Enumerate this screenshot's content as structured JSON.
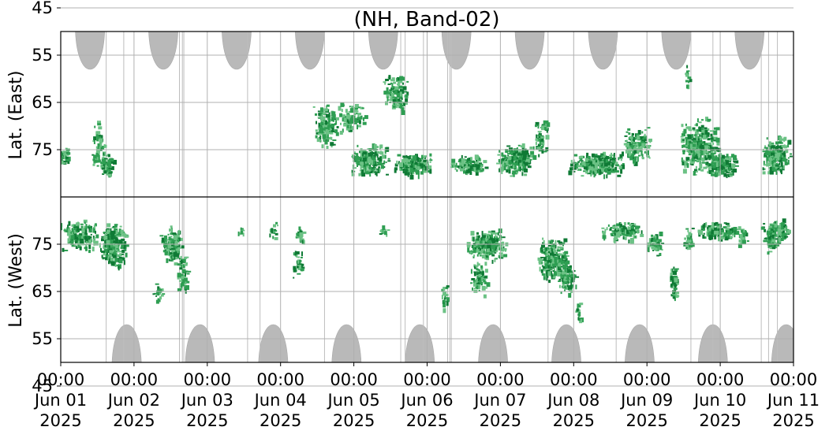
{
  "chart_data": {
    "type": "heatmap",
    "title": "(NH, Band-02)",
    "ylabel_top": "Lat. (East)",
    "ylabel_bottom": "Lat. (West)",
    "x_range": [
      "2025-06-01T00:00",
      "2025-06-11T00:00"
    ],
    "x_ticks": [
      {
        "time": "00:00",
        "date": "Jun 01",
        "year": "2025",
        "day": 0
      },
      {
        "time": "00:00",
        "date": "Jun 02",
        "year": "2025",
        "day": 1
      },
      {
        "time": "00:00",
        "date": "Jun 03",
        "year": "2025",
        "day": 2
      },
      {
        "time": "00:00",
        "date": "Jun 04",
        "year": "2025",
        "day": 3
      },
      {
        "time": "00:00",
        "date": "Jun 05",
        "year": "2025",
        "day": 4
      },
      {
        "time": "00:00",
        "date": "Jun 06",
        "year": "2025",
        "day": 5
      },
      {
        "time": "00:00",
        "date": "Jun 07",
        "year": "2025",
        "day": 6
      },
      {
        "time": "00:00",
        "date": "Jun 08",
        "year": "2025",
        "day": 7
      },
      {
        "time": "00:00",
        "date": "Jun 09",
        "year": "2025",
        "day": 8
      },
      {
        "time": "00:00",
        "date": "Jun 10",
        "year": "2025",
        "day": 9
      },
      {
        "time": "00:00",
        "date": "Jun 11",
        "year": "2025",
        "day": 10
      }
    ],
    "y_ticks_east": [
      45,
      55,
      65,
      75
    ],
    "y_ticks_west": [
      75,
      65,
      55,
      45
    ],
    "grid": true,
    "colors": {
      "gray_band": "#b9b9b9",
      "green_dark": "#0f7a35",
      "green_mid": "#2e9e52",
      "green_light": "#6cc285",
      "grid": "#b0b0b0",
      "divider": "#000000"
    },
    "no_data_regions": [
      {
        "side": "east",
        "center_day": 0.4,
        "half_width_days": 0.2,
        "deepest_lat": 60
      },
      {
        "side": "east",
        "center_day": 1.4,
        "half_width_days": 0.2,
        "deepest_lat": 60
      },
      {
        "side": "east",
        "center_day": 2.4,
        "half_width_days": 0.2,
        "deepest_lat": 60
      },
      {
        "side": "east",
        "center_day": 3.4,
        "half_width_days": 0.2,
        "deepest_lat": 60
      },
      {
        "side": "east",
        "center_day": 4.4,
        "half_width_days": 0.2,
        "deepest_lat": 60
      },
      {
        "side": "east",
        "center_day": 5.4,
        "half_width_days": 0.2,
        "deepest_lat": 60
      },
      {
        "side": "east",
        "center_day": 6.4,
        "half_width_days": 0.2,
        "deepest_lat": 60
      },
      {
        "side": "east",
        "center_day": 7.4,
        "half_width_days": 0.2,
        "deepest_lat": 60
      },
      {
        "side": "east",
        "center_day": 8.4,
        "half_width_days": 0.2,
        "deepest_lat": 60
      },
      {
        "side": "east",
        "center_day": 9.4,
        "half_width_days": 0.2,
        "deepest_lat": 60
      },
      {
        "side": "west",
        "center_day": 0.9,
        "half_width_days": 0.2,
        "deepest_lat": 60
      },
      {
        "side": "west",
        "center_day": 1.9,
        "half_width_days": 0.2,
        "deepest_lat": 60
      },
      {
        "side": "west",
        "center_day": 2.9,
        "half_width_days": 0.2,
        "deepest_lat": 60
      },
      {
        "side": "west",
        "center_day": 3.9,
        "half_width_days": 0.2,
        "deepest_lat": 60
      },
      {
        "side": "west",
        "center_day": 4.9,
        "half_width_days": 0.2,
        "deepest_lat": 60
      },
      {
        "side": "west",
        "center_day": 5.9,
        "half_width_days": 0.2,
        "deepest_lat": 60
      },
      {
        "side": "west",
        "center_day": 6.9,
        "half_width_days": 0.2,
        "deepest_lat": 60
      },
      {
        "side": "west",
        "center_day": 7.9,
        "half_width_days": 0.2,
        "deepest_lat": 60
      },
      {
        "side": "west",
        "center_day": 8.9,
        "half_width_days": 0.2,
        "deepest_lat": 60
      },
      {
        "side": "west",
        "center_day": 9.9,
        "half_width_days": 0.2,
        "deepest_lat": 60
      }
    ],
    "gap_lines_days": [
      0.62,
      0.86,
      1.62,
      1.66,
      1.68,
      2.55,
      2.72,
      3.6,
      4.64,
      4.7,
      4.95,
      5.28,
      5.31,
      5.33,
      6.65,
      7.58,
      8.6,
      8.9,
      9.56,
      9.66,
      9.78
    ],
    "activity_clusters": [
      {
        "side": "east",
        "day": 0.04,
        "day_span": 0.12,
        "lat": 76,
        "lat_span": 3,
        "density": 0.55
      },
      {
        "side": "east",
        "day": 0.5,
        "day_span": 0.14,
        "lat": 74,
        "lat_span": 8,
        "density": 0.3
      },
      {
        "side": "east",
        "day": 0.62,
        "day_span": 0.14,
        "lat": 78,
        "lat_span": 4,
        "density": 0.75
      },
      {
        "side": "west",
        "day": 0.25,
        "day_span": 0.38,
        "lat": 77,
        "lat_span": 5,
        "density": 0.55
      },
      {
        "side": "west",
        "day": 0.7,
        "day_span": 0.3,
        "lat": 75,
        "lat_span": 7,
        "density": 0.75
      },
      {
        "side": "west",
        "day": 1.5,
        "day_span": 0.22,
        "lat": 75,
        "lat_span": 6,
        "density": 0.65
      },
      {
        "side": "west",
        "day": 1.65,
        "day_span": 0.12,
        "lat": 69,
        "lat_span": 6,
        "density": 0.45
      },
      {
        "side": "west",
        "day": 1.32,
        "day_span": 0.1,
        "lat": 65,
        "lat_span": 3,
        "density": 0.4
      },
      {
        "side": "west",
        "day": 2.45,
        "day_span": 0.06,
        "lat": 78,
        "lat_span": 2,
        "density": 0.45
      },
      {
        "side": "west",
        "day": 2.9,
        "day_span": 0.1,
        "lat": 78,
        "lat_span": 3,
        "density": 0.4
      },
      {
        "side": "west",
        "day": 3.25,
        "day_span": 0.1,
        "lat": 77,
        "lat_span": 3,
        "density": 0.5
      },
      {
        "side": "west",
        "day": 3.22,
        "day_span": 0.1,
        "lat": 71,
        "lat_span": 5,
        "density": 0.5
      },
      {
        "side": "east",
        "day": 3.6,
        "day_span": 0.25,
        "lat": 70,
        "lat_span": 7,
        "density": 0.55
      },
      {
        "side": "east",
        "day": 3.95,
        "day_span": 0.3,
        "lat": 68,
        "lat_span": 5,
        "density": 0.4
      },
      {
        "side": "east",
        "day": 4.2,
        "day_span": 0.4,
        "lat": 77,
        "lat_span": 5,
        "density": 0.65
      },
      {
        "side": "east",
        "day": 4.55,
        "day_span": 0.3,
        "lat": 63,
        "lat_span": 6,
        "density": 0.45
      },
      {
        "side": "east",
        "day": 4.8,
        "day_span": 0.38,
        "lat": 78,
        "lat_span": 4,
        "density": 0.8
      },
      {
        "side": "west",
        "day": 4.4,
        "day_span": 0.1,
        "lat": 78,
        "lat_span": 2,
        "density": 0.4
      },
      {
        "side": "east",
        "day": 5.55,
        "day_span": 0.38,
        "lat": 78,
        "lat_span": 3,
        "density": 0.8
      },
      {
        "side": "west",
        "day": 5.8,
        "day_span": 0.4,
        "lat": 75,
        "lat_span": 5,
        "density": 0.7
      },
      {
        "side": "west",
        "day": 5.7,
        "day_span": 0.18,
        "lat": 68,
        "lat_span": 6,
        "density": 0.45
      },
      {
        "side": "west",
        "day": 5.22,
        "day_span": 0.08,
        "lat": 64,
        "lat_span": 4,
        "density": 0.4
      },
      {
        "side": "east",
        "day": 6.2,
        "day_span": 0.4,
        "lat": 77,
        "lat_span": 5,
        "density": 0.7
      },
      {
        "side": "east",
        "day": 6.55,
        "day_span": 0.15,
        "lat": 72,
        "lat_span": 6,
        "density": 0.4
      },
      {
        "side": "west",
        "day": 6.7,
        "day_span": 0.3,
        "lat": 72,
        "lat_span": 7,
        "density": 0.7
      },
      {
        "side": "west",
        "day": 6.9,
        "day_span": 0.2,
        "lat": 68,
        "lat_span": 5,
        "density": 0.55
      },
      {
        "side": "west",
        "day": 7.05,
        "day_span": 0.06,
        "lat": 61,
        "lat_span": 3,
        "density": 0.5
      },
      {
        "side": "east",
        "day": 7.3,
        "day_span": 0.55,
        "lat": 78,
        "lat_span": 4,
        "density": 0.8
      },
      {
        "side": "east",
        "day": 7.85,
        "day_span": 0.3,
        "lat": 74,
        "lat_span": 6,
        "density": 0.5
      },
      {
        "side": "west",
        "day": 7.65,
        "day_span": 0.45,
        "lat": 78,
        "lat_span": 3,
        "density": 0.7
      },
      {
        "side": "west",
        "day": 8.1,
        "day_span": 0.15,
        "lat": 75,
        "lat_span": 4,
        "density": 0.6
      },
      {
        "side": "west",
        "day": 8.35,
        "day_span": 0.08,
        "lat": 67,
        "lat_span": 6,
        "density": 0.75
      },
      {
        "side": "east",
        "day": 8.7,
        "day_span": 0.4,
        "lat": 74,
        "lat_span": 9,
        "density": 0.55
      },
      {
        "side": "east",
        "day": 9.0,
        "day_span": 0.35,
        "lat": 78,
        "lat_span": 4,
        "density": 0.85
      },
      {
        "side": "east",
        "day": 8.55,
        "day_span": 0.05,
        "lat": 60,
        "lat_span": 5,
        "density": 0.4
      },
      {
        "side": "west",
        "day": 8.95,
        "day_span": 0.4,
        "lat": 78,
        "lat_span": 3,
        "density": 0.75
      },
      {
        "side": "west",
        "day": 9.3,
        "day_span": 0.12,
        "lat": 77,
        "lat_span": 3,
        "density": 0.45
      },
      {
        "side": "west",
        "day": 8.55,
        "day_span": 0.1,
        "lat": 76,
        "lat_span": 4,
        "density": 0.55
      },
      {
        "side": "east",
        "day": 9.75,
        "day_span": 0.3,
        "lat": 76,
        "lat_span": 6,
        "density": 0.65
      },
      {
        "side": "west",
        "day": 9.75,
        "day_span": 0.3,
        "lat": 78,
        "lat_span": 4,
        "density": 0.7
      },
      {
        "side": "west",
        "day": 9.7,
        "day_span": 0.15,
        "lat": 75,
        "lat_span": 3,
        "density": 0.45
      }
    ]
  }
}
